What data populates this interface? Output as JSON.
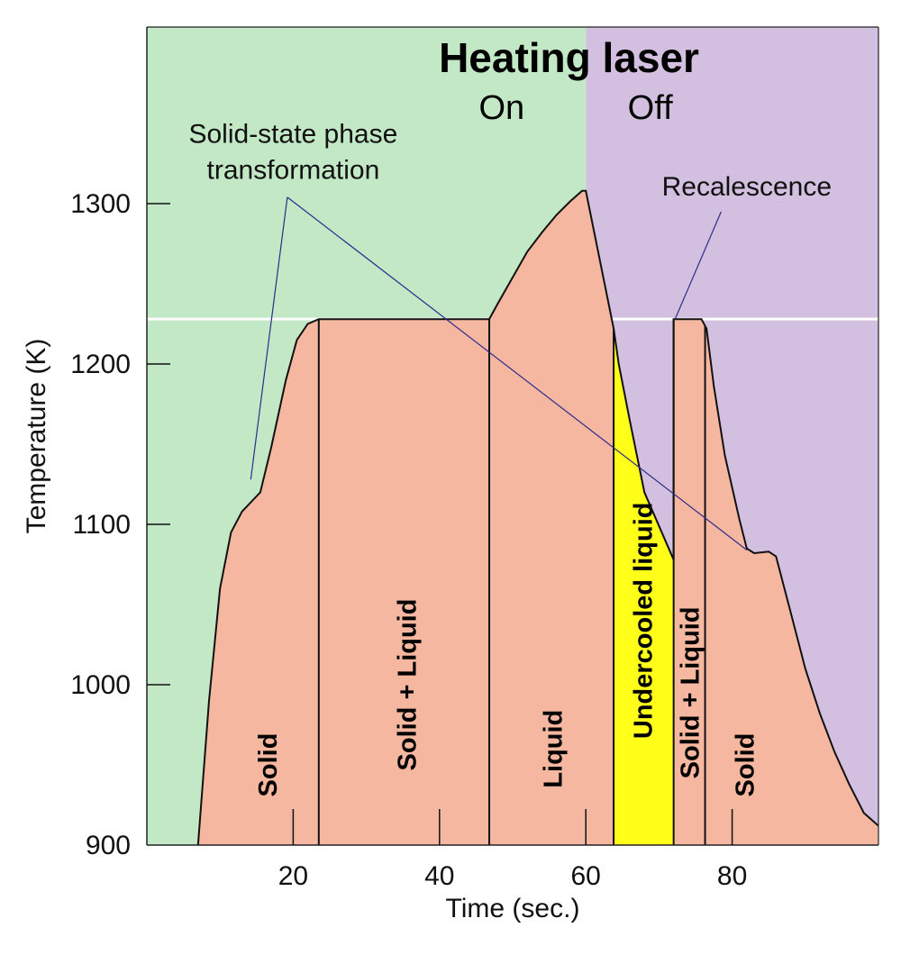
{
  "chart_data": {
    "type": "area",
    "title": "Heating laser",
    "laser_states": [
      {
        "label": "On",
        "from": 0,
        "to": 60,
        "color": "#c2e8c6"
      },
      {
        "label": "Off",
        "from": 60,
        "to": 100,
        "color": "#d3bfdf"
      }
    ],
    "xlabel": "Time (sec.)",
    "ylabel": "Temperature (K)",
    "xlim": [
      0,
      100
    ],
    "ylim": [
      900,
      1390
    ],
    "xticks": [
      20,
      40,
      60,
      80
    ],
    "yticks": [
      900,
      1000,
      1100,
      1200,
      1300
    ],
    "reference_line": {
      "y": 1228,
      "color": "#ffffff"
    },
    "curve": [
      [
        7.0,
        900
      ],
      [
        8.5,
        990
      ],
      [
        10.0,
        1060
      ],
      [
        11.5,
        1095
      ],
      [
        13.0,
        1108
      ],
      [
        15.5,
        1120
      ],
      [
        17.0,
        1148
      ],
      [
        19.0,
        1190
      ],
      [
        20.5,
        1215
      ],
      [
        22.0,
        1225
      ],
      [
        23.5,
        1228
      ],
      [
        46.8,
        1228
      ],
      [
        48.0,
        1238
      ],
      [
        50.0,
        1254
      ],
      [
        52.0,
        1270
      ],
      [
        54.0,
        1282
      ],
      [
        56.0,
        1293
      ],
      [
        58.0,
        1302
      ],
      [
        59.5,
        1308
      ],
      [
        60.0,
        1308
      ],
      [
        63.8,
        1222
      ],
      [
        64.5,
        1200
      ],
      [
        66.0,
        1165
      ],
      [
        68.0,
        1120
      ],
      [
        72.0,
        1078
      ],
      [
        72.0,
        1228
      ],
      [
        75.8,
        1228
      ],
      [
        76.5,
        1222
      ],
      [
        77.5,
        1186
      ],
      [
        79.0,
        1143
      ],
      [
        81.0,
        1103
      ],
      [
        82.0,
        1085
      ],
      [
        83.0,
        1082
      ],
      [
        85.0,
        1083
      ],
      [
        86.0,
        1080
      ],
      [
        88.0,
        1045
      ],
      [
        90.0,
        1010
      ],
      [
        92.0,
        982
      ],
      [
        94.0,
        958
      ],
      [
        96.0,
        938
      ],
      [
        98.0,
        920
      ],
      [
        100.0,
        912
      ],
      [
        100.0,
        900
      ]
    ],
    "undercooled_region": [
      [
        63.8,
        1222
      ],
      [
        64.5,
        1200
      ],
      [
        66.0,
        1165
      ],
      [
        68.0,
        1120
      ],
      [
        72.0,
        1078
      ],
      [
        72.0,
        900
      ],
      [
        63.8,
        900
      ]
    ],
    "phase_boundaries": [
      23.5,
      46.8,
      63.8,
      72.0,
      76.3
    ],
    "phases": [
      {
        "label": "Solid",
        "x": 16.5,
        "y": 950,
        "color": "#f5b7a0"
      },
      {
        "label": "Solid + Liquid",
        "x": 35.5,
        "y": 1000,
        "color": "#f5b7a0"
      },
      {
        "label": "Liquid",
        "x": 55.5,
        "y": 960,
        "color": "#f5b7a0"
      },
      {
        "label": "Undercooled liquid",
        "x": 67.8,
        "y": 1040,
        "color": "#ffff1a"
      },
      {
        "label": "Solid + Liquid",
        "x": 74.2,
        "y": 995,
        "color": "#f5b7a0"
      },
      {
        "label": "Solid",
        "x": 81.7,
        "y": 950,
        "color": "#f5b7a0"
      }
    ],
    "annotations": [
      {
        "lines": [
          "Solid-state phase",
          "transformation"
        ],
        "x": 20,
        "y": 1338,
        "pointer_from": [
          19.2,
          1304
        ],
        "pointer_to": [
          [
            14.2,
            1128
          ],
          [
            82.0,
            1084
          ]
        ]
      },
      {
        "lines": [
          "Recalescence"
        ],
        "x": 82,
        "y": 1305,
        "pointer_from": [
          78.5,
          1295
        ],
        "pointer_to": [
          [
            72.2,
            1228
          ]
        ]
      }
    ],
    "grid": false
  },
  "colors": {
    "curve_fill": "#f5b7a0",
    "undercooled_fill": "#ffff1a",
    "annotation_line": "#2c2c8c"
  }
}
